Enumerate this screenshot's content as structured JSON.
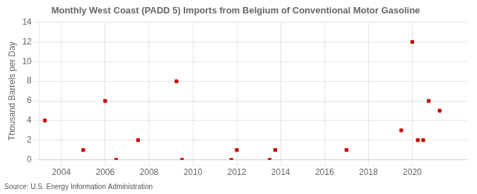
{
  "chart_data": {
    "type": "scatter",
    "title": "Monthly West Coast (PADD 5) Imports from Belgium of Conventional Motor Gasoline",
    "ylabel": "Thousand Barrels per Day",
    "source": "Source: U.S. Energy Information Administration",
    "x": [
      2003.25,
      2005.0,
      2006.0,
      2006.5,
      2007.5,
      2009.25,
      2009.5,
      2011.75,
      2012.0,
      2013.5,
      2013.75,
      2017.0,
      2019.5,
      2020.0,
      2020.25,
      2020.5,
      2020.75,
      2021.25
    ],
    "values": [
      4,
      1,
      6,
      0,
      2,
      8,
      0,
      0,
      1,
      0,
      1,
      1,
      3,
      12,
      2,
      2,
      6,
      5
    ],
    "color": "#cc0000",
    "marker": "square",
    "xlim": [
      2003.0,
      2022.5
    ],
    "ylim": [
      0,
      14
    ],
    "xticks": [
      2004,
      2006,
      2008,
      2010,
      2012,
      2014,
      2016,
      2018,
      2020
    ],
    "yticks": [
      0,
      2,
      4,
      6,
      8,
      10,
      12,
      14
    ],
    "grid": true
  }
}
